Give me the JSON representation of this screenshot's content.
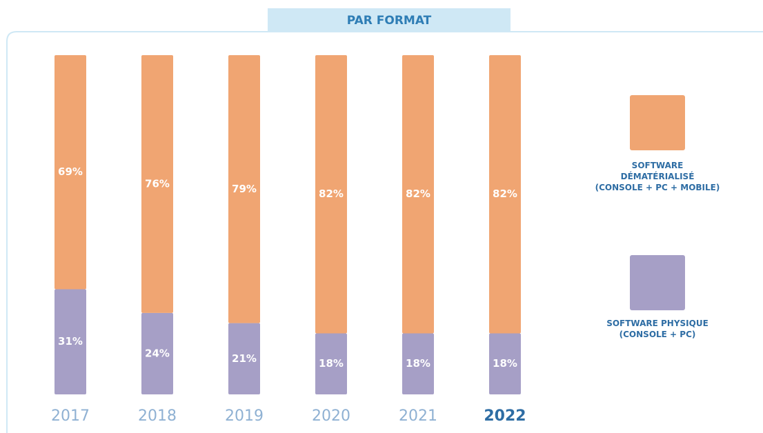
{
  "chart_data": {
    "type": "stacked_bar",
    "title": "PAR FORMAT",
    "categories": [
      "2017",
      "2018",
      "2019",
      "2020",
      "2021",
      "2022"
    ],
    "highlight": "2022",
    "ylim": [
      0,
      100
    ],
    "series": [
      {
        "name": "SOFTWARE PHYSIQUE\n(CONSOLE + PC)",
        "color": "#a69fc6",
        "values": [
          31,
          24,
          21,
          18,
          18,
          18
        ],
        "value_labels": [
          "31%",
          "24%",
          "21%",
          "18%",
          "18%",
          "18%"
        ]
      },
      {
        "name": "SOFTWARE\nDÉMATÉRIALISÉ\n(CONSOLE + PC + MOBILE)",
        "color": "#f0a572",
        "values": [
          69,
          76,
          79,
          82,
          82,
          82
        ],
        "value_labels": [
          "69%",
          "76%",
          "79%",
          "82%",
          "82%",
          "82%"
        ]
      }
    ]
  }
}
